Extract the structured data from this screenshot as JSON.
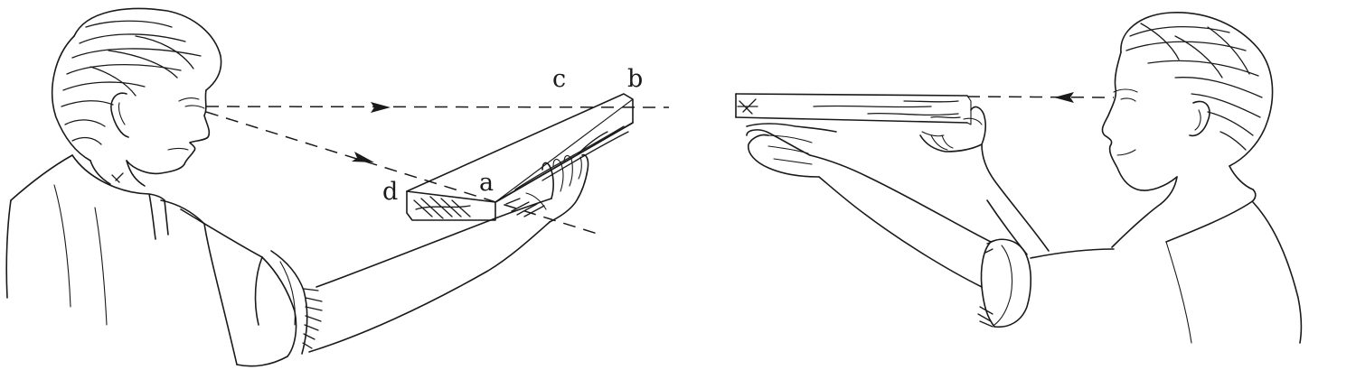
{
  "figure": {
    "labels": {
      "a": "a",
      "b": "b",
      "c": "c",
      "d": "d"
    }
  }
}
